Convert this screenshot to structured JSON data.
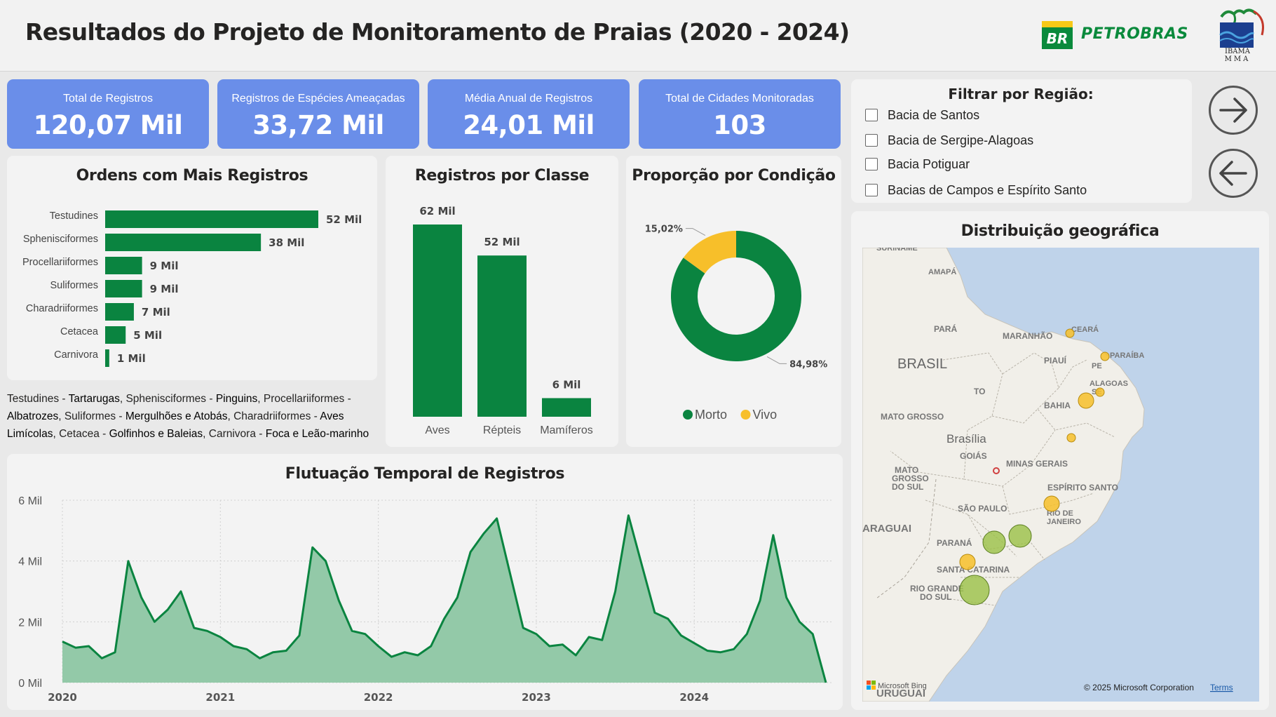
{
  "header": {
    "title": "Resultados do Projeto de Monitoramento de Praias (2020 - 2024)",
    "petrobras_mark": "BR",
    "petrobras_text": "PETROBRAS",
    "ibama_line1": "IBAMA",
    "ibama_line2": "MMA"
  },
  "kpis": [
    {
      "label": "Total de Registros",
      "value": "120,07 Mil"
    },
    {
      "label": "Registros de Espécies Ameaçadas",
      "value": "33,72 Mil"
    },
    {
      "label": "Média Anual de Registros",
      "value": "24,01 Mil"
    },
    {
      "label": "Total de Cidades Monitoradas",
      "value": "103"
    }
  ],
  "orders": {
    "title": "Ordens com Mais Registros",
    "caption_parts": [
      {
        "t": "Testudines - ",
        "b": false
      },
      {
        "t": "Tartarugas",
        "b": true
      },
      {
        "t": ", Sphenisciformes - ",
        "b": false
      },
      {
        "t": "Pinguins",
        "b": true
      },
      {
        "t": ", Procellariiformes - ",
        "b": false
      },
      {
        "t": "Albatrozes",
        "b": true
      },
      {
        "t": ", Suliformes - ",
        "b": false
      },
      {
        "t": "Mergulhões e Atobás",
        "b": true
      },
      {
        "t": ", Charadriiformes - ",
        "b": false
      },
      {
        "t": "Aves Limícolas",
        "b": true
      },
      {
        "t": ", Cetacea - ",
        "b": false
      },
      {
        "t": "Golfinhos e Baleias",
        "b": true
      },
      {
        "t": ", Carnivora - ",
        "b": false
      },
      {
        "t": "Foca e Leão-marinho",
        "b": true
      }
    ]
  },
  "classes": {
    "title": "Registros por Classe"
  },
  "condition": {
    "title": "Proporção por Condição"
  },
  "filter": {
    "title": "Filtrar por Região:",
    "options": [
      "Bacia de Santos",
      "Bacia de Sergipe-Alagoas",
      "Bacia Potiguar",
      "Bacias de Campos e Espírito Santo"
    ]
  },
  "nav": {
    "forward_icon": "arrow-right-icon",
    "back_icon": "arrow-left-icon"
  },
  "map": {
    "title": "Distribuição geográfica",
    "copyright": "© 2025 Microsoft Corporation",
    "terms": "Terms",
    "provider": "Microsoft Bing",
    "labels": [
      {
        "name": "suriname",
        "text": "SURINAME"
      },
      {
        "name": "amapa",
        "text": "AMAPÁ"
      },
      {
        "name": "para",
        "text": "PARÁ"
      },
      {
        "name": "maranhao",
        "text": "MARANHÃO"
      },
      {
        "name": "ceara",
        "text": "CEARÁ"
      },
      {
        "name": "paraiba",
        "text": "PARAÍBA"
      },
      {
        "name": "brasil",
        "text": "BRASIL"
      },
      {
        "name": "piaui",
        "text": "PIAUÍ"
      },
      {
        "name": "pe",
        "text": "PE"
      },
      {
        "name": "alagoas",
        "text": "ALAGOAS"
      },
      {
        "name": "se",
        "text": "SE"
      },
      {
        "name": "to",
        "text": "TO"
      },
      {
        "name": "bahia",
        "text": "BAHIA"
      },
      {
        "name": "mato-grosso",
        "text": "MATO GROSSO"
      },
      {
        "name": "brasilia",
        "text": "Brasília"
      },
      {
        "name": "goias",
        "text": "GOIÁS"
      },
      {
        "name": "minas",
        "text": "MINAS GERAIS"
      },
      {
        "name": "ms1",
        "text": "MATO"
      },
      {
        "name": "ms2",
        "text": "GROSSO"
      },
      {
        "name": "ms3",
        "text": "DO SUL"
      },
      {
        "name": "es",
        "text": "ESPÍRITO SANTO"
      },
      {
        "name": "sp",
        "text": "SÃO PAULO"
      },
      {
        "name": "rj1",
        "text": "RIO DE"
      },
      {
        "name": "rj2",
        "text": "JANEIRO"
      },
      {
        "name": "paraguai",
        "text": "ARAGUAI"
      },
      {
        "name": "parana",
        "text": "PARANÁ"
      },
      {
        "name": "sc",
        "text": "SANTA CATARINA"
      },
      {
        "name": "rs1",
        "text": "RIO GRANDE"
      },
      {
        "name": "rs2",
        "text": "DO SUL"
      },
      {
        "name": "uruguai",
        "text": "URUGUAI"
      }
    ]
  },
  "colors": {
    "kpi": "#6a8ee9",
    "green": "#0a8440",
    "area_fill": "#93c9a8",
    "yellow": "#f7bf2a",
    "bubble_green": "#9bc146",
    "ocean": "#bfd3ea",
    "land": "#f1efe9"
  },
  "chart_data": [
    {
      "type": "bar",
      "orientation": "horizontal",
      "title": "Ordens com Mais Registros",
      "categories": [
        "Testudines",
        "Sphenisciformes",
        "Procellariiformes",
        "Suliformes",
        "Charadriiformes",
        "Cetacea",
        "Carnivora"
      ],
      "values": [
        52,
        38,
        9,
        9,
        7,
        5,
        1
      ],
      "labels": [
        "52 Mil",
        "38 Mil",
        "9 Mil",
        "9 Mil",
        "7 Mil",
        "5 Mil",
        "1 Mil"
      ],
      "unit": "Mil"
    },
    {
      "type": "bar",
      "title": "Registros por Classe",
      "categories": [
        "Aves",
        "Répteis",
        "Mamíferos"
      ],
      "values": [
        62,
        52,
        6
      ],
      "labels": [
        "62 Mil",
        "52 Mil",
        "6 Mil"
      ],
      "unit": "Mil"
    },
    {
      "type": "pie",
      "donut": true,
      "title": "Proporção por Condição",
      "categories": [
        "Morto",
        "Vivo"
      ],
      "values": [
        84.98,
        15.02
      ],
      "labels": [
        "84,98%",
        "15,02%"
      ],
      "legend_placement": "bottom"
    },
    {
      "type": "area",
      "title": "Flutuação Temporal de Registros",
      "x_ticks": [
        "2020",
        "2021",
        "2022",
        "2023",
        "2024"
      ],
      "y_ticks": [
        "0 Mil",
        "2 Mil",
        "4 Mil",
        "6 Mil"
      ],
      "ylim": [
        0,
        6
      ],
      "grid": true,
      "x_start": "2020-01",
      "x_step": "month",
      "values": [
        1.35,
        1.15,
        1.2,
        0.8,
        1.0,
        4.0,
        2.8,
        2.0,
        2.4,
        3.0,
        1.8,
        1.7,
        1.5,
        1.2,
        1.1,
        0.8,
        1.0,
        1.05,
        1.55,
        4.45,
        4.0,
        2.7,
        1.7,
        1.6,
        1.2,
        0.85,
        1.0,
        0.9,
        1.2,
        2.1,
        2.8,
        4.3,
        4.9,
        5.4,
        3.6,
        1.8,
        1.6,
        1.2,
        1.25,
        0.9,
        1.5,
        1.4,
        3.0,
        5.5,
        3.9,
        2.3,
        2.1,
        1.55,
        1.3,
        1.05,
        1.0,
        1.1,
        1.6,
        2.7,
        4.85,
        2.8,
        2.0,
        1.6,
        0.0
      ]
    }
  ],
  "map_points": [
    {
      "name": "ceara",
      "size": "small",
      "color": "yellow"
    },
    {
      "name": "rio-grande-do-norte",
      "size": "small",
      "color": "yellow"
    },
    {
      "name": "alagoas",
      "size": "small",
      "color": "yellow"
    },
    {
      "name": "sergipe",
      "size": "medium",
      "color": "yellow"
    },
    {
      "name": "bahia-sul",
      "size": "small",
      "color": "yellow"
    },
    {
      "name": "espirito-santo",
      "size": "medium",
      "color": "yellow"
    },
    {
      "name": "rio-de-janeiro",
      "size": "large",
      "color": "green"
    },
    {
      "name": "sao-paulo",
      "size": "large",
      "color": "green"
    },
    {
      "name": "parana",
      "size": "medium",
      "color": "yellow"
    },
    {
      "name": "santa-catarina",
      "size": "xlarge",
      "color": "green"
    }
  ]
}
